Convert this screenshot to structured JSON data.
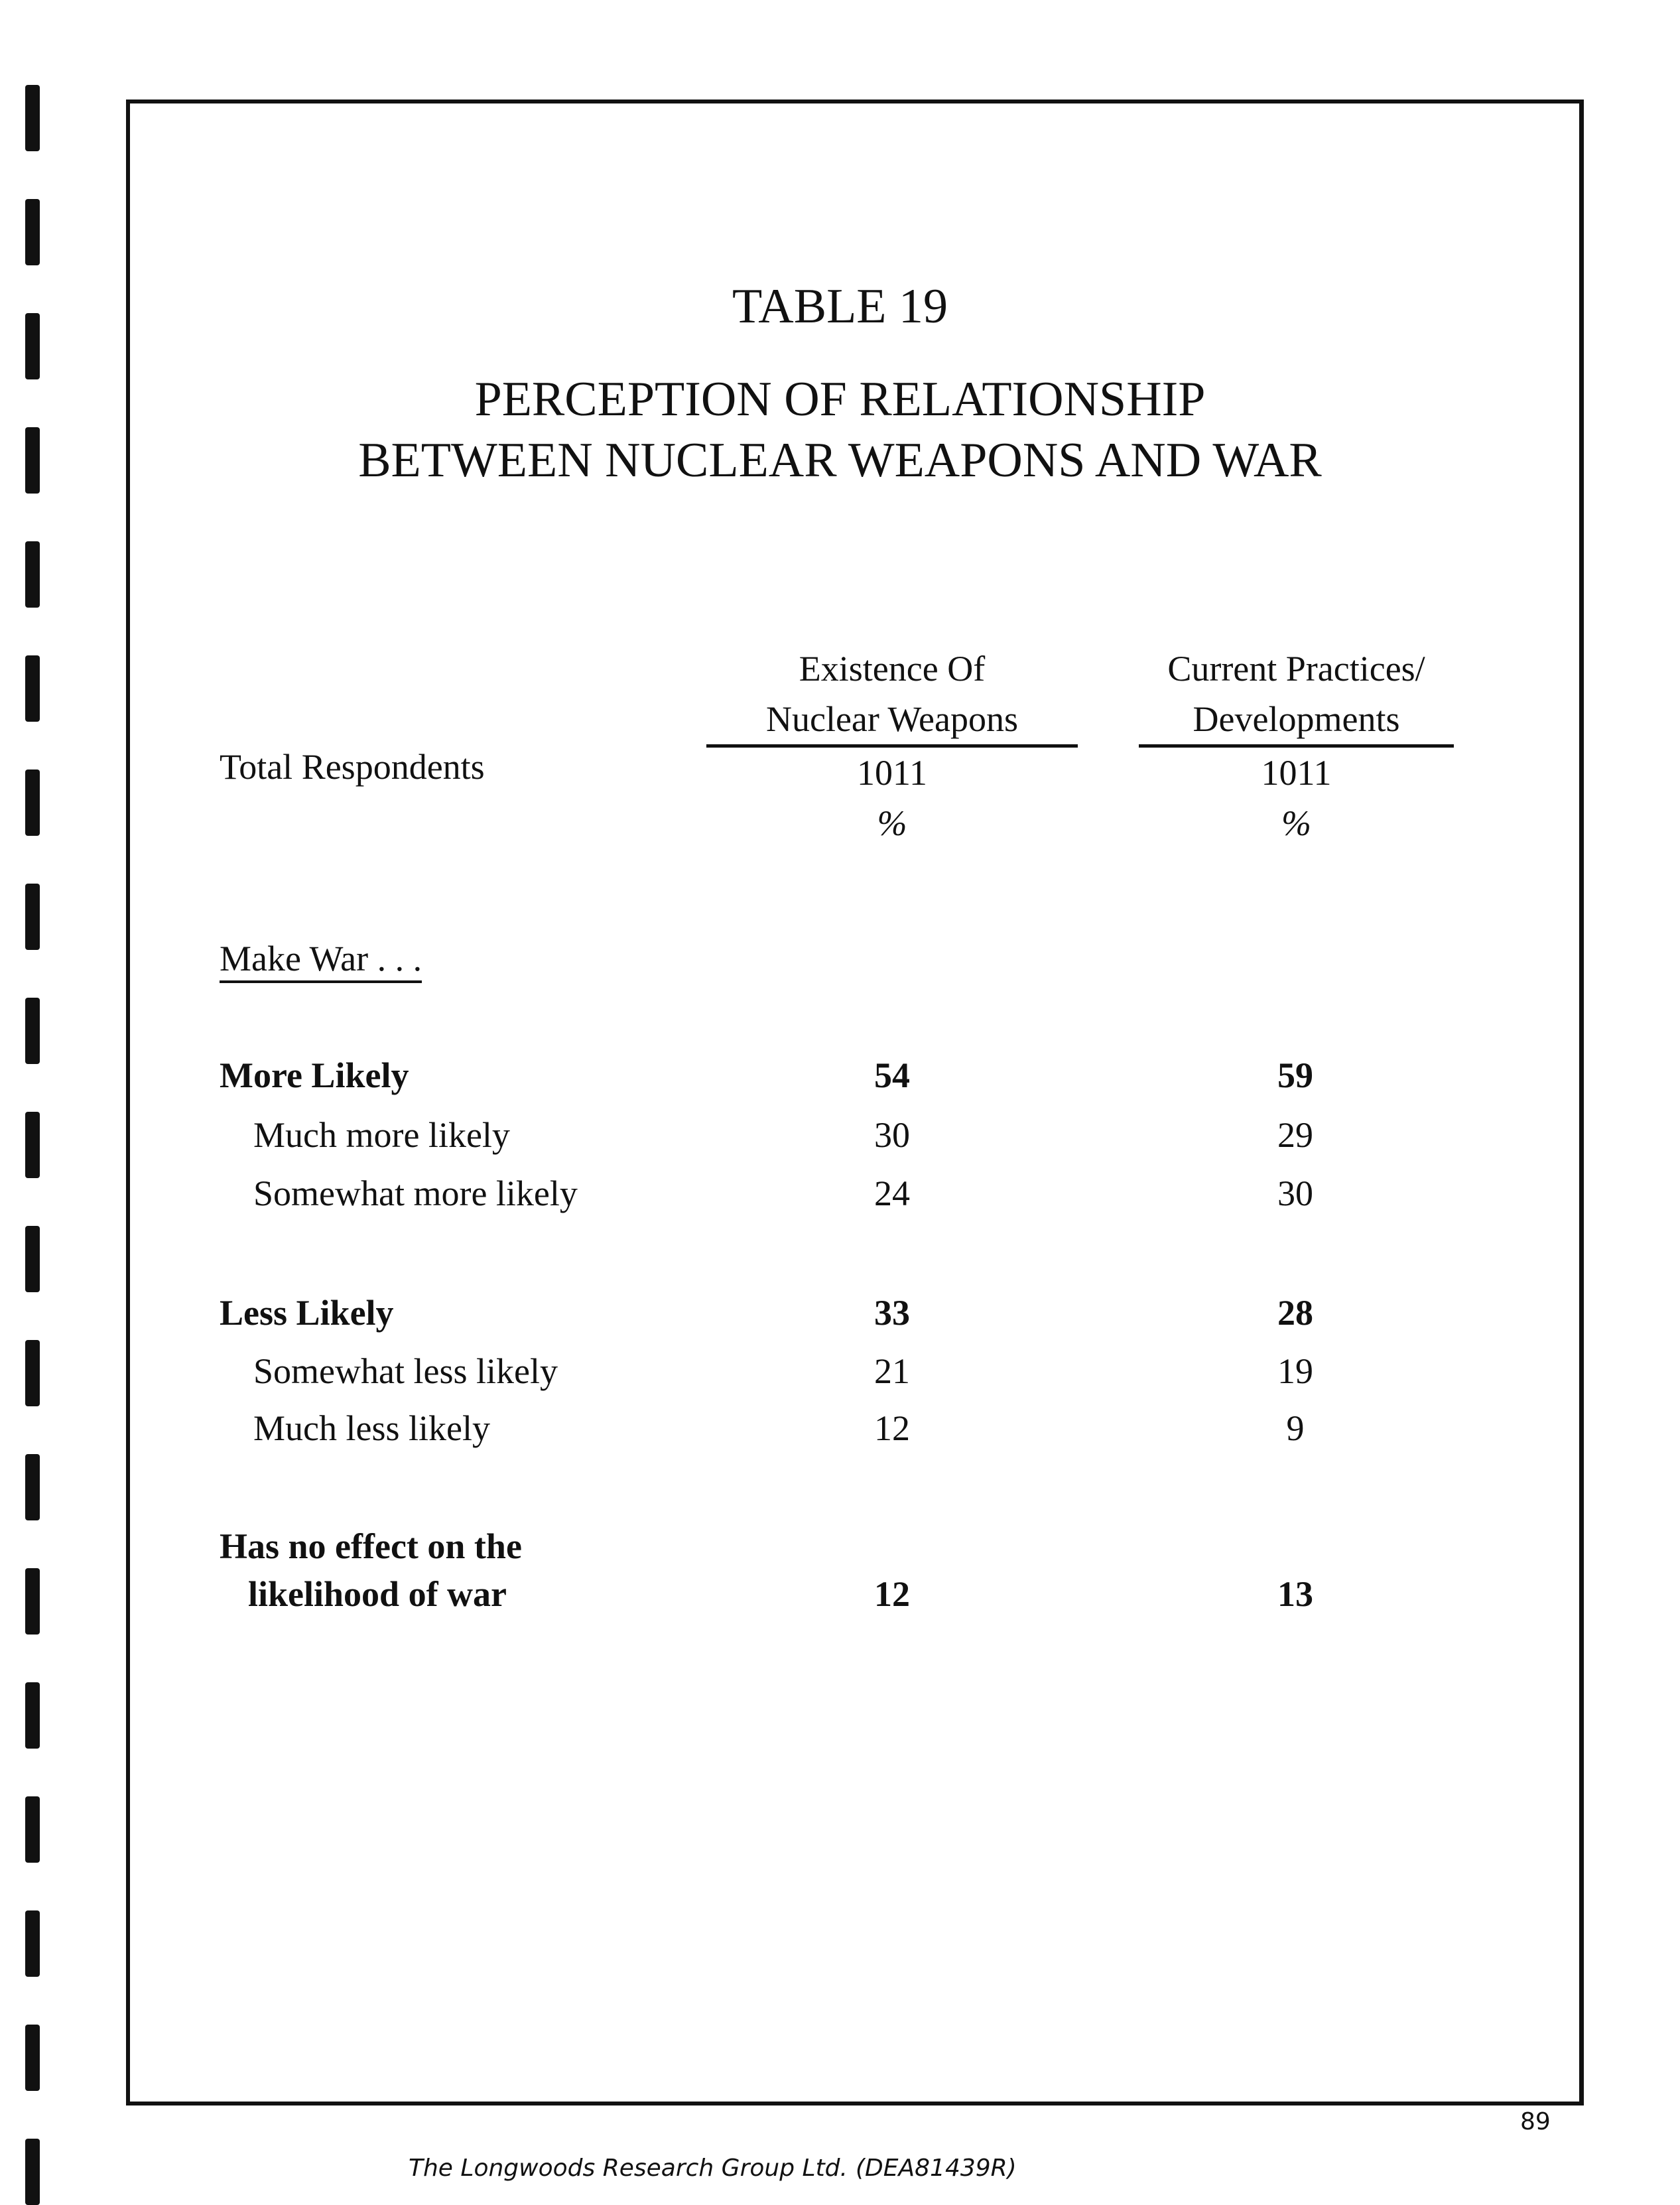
{
  "table": {
    "number": "TABLE 19",
    "title_line1": "PERCEPTION OF RELATIONSHIP",
    "title_line2": "BETWEEN NUCLEAR WEAPONS AND WAR",
    "columns": [
      {
        "line1": "Existence Of",
        "line2": "Nuclear Weapons",
        "base": "1011",
        "unit": "%"
      },
      {
        "line1": "Current Practices/",
        "line2": "Developments",
        "base": "1011",
        "unit": "%"
      }
    ],
    "total_label": "Total Respondents",
    "section_label": "Make War . . .",
    "rows": [
      {
        "label": "More Likely",
        "values": [
          "54",
          "59"
        ]
      },
      {
        "label": "Much more likely",
        "values": [
          "30",
          "29"
        ]
      },
      {
        "label": "Somewhat more likely",
        "values": [
          "24",
          "30"
        ]
      },
      {
        "label": "Less Likely",
        "values": [
          "33",
          "28"
        ]
      },
      {
        "label": "Somewhat less likely",
        "values": [
          "21",
          "19"
        ]
      },
      {
        "label": "Much less likely",
        "values": [
          "12",
          "9"
        ]
      },
      {
        "label": "Has no effect on the",
        "label2": "likelihood of war",
        "values": [
          "12",
          "13"
        ]
      }
    ]
  },
  "footer": {
    "company": "The Longwoods Research Group Ltd.",
    "code": "(DEA81439R)",
    "page_number": "89"
  }
}
